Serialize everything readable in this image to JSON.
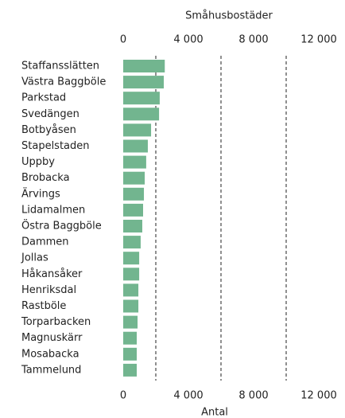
{
  "chart_data": {
    "type": "hbar",
    "title": "Småhusbostäder",
    "x_label": "Antal",
    "categories": [
      "Staffansslätten",
      "Västra Baggböle",
      "Parkstad",
      "Svedängen",
      "Botbyåsen",
      "Stapelstaden",
      "Uppby",
      "Brobacka",
      "Ärvings",
      "Lidamalmen",
      "Östra Baggböle",
      "Dammen",
      "Jollas",
      "Håkansåker",
      "Henriksdal",
      "Rastböle",
      "Torparbacken",
      "Magnuskärr",
      "Mosabacka",
      "Tammelund"
    ],
    "values": [
      2550,
      2490,
      2240,
      2200,
      1710,
      1510,
      1410,
      1320,
      1270,
      1220,
      1170,
      1070,
      980,
      980,
      930,
      930,
      880,
      830,
      830,
      830
    ],
    "color": "#72b58f",
    "xlim": [
      0,
      12000
    ],
    "xticks": [
      0,
      {
        "value": 4000,
        "label": "4 000"
      },
      {
        "value": 8000,
        "label": "8 000"
      },
      {
        "value": 12000,
        "label": "12 000"
      }
    ],
    "grid_lines": [
      2000,
      6000,
      10000
    ]
  }
}
